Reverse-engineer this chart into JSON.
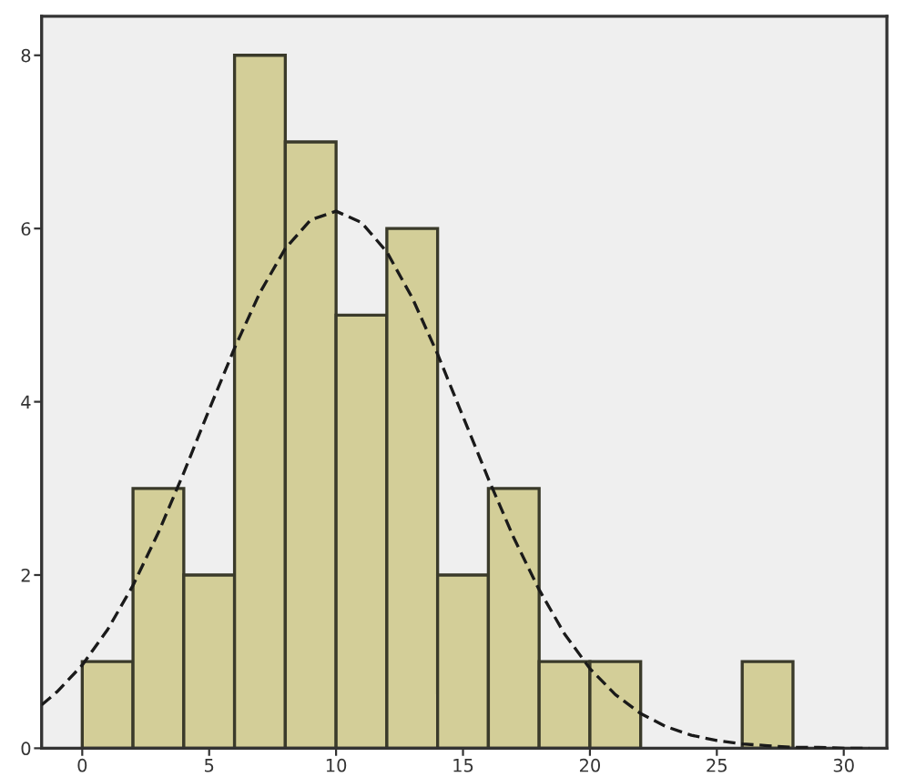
{
  "chart_data": {
    "type": "histogram",
    "xlim": [
      -1.6,
      31.7
    ],
    "ylim": [
      0,
      8.45
    ],
    "xticks": [
      0,
      5,
      10,
      15,
      20,
      25,
      30
    ],
    "yticks": [
      0,
      2,
      4,
      6,
      8
    ],
    "grid": false,
    "series": [
      {
        "color": "#d3ce98",
        "bins": [
          0,
          2,
          4,
          6,
          8,
          10,
          12,
          14,
          16,
          18,
          20,
          22,
          24,
          26,
          28
        ],
        "values": [
          1,
          3,
          2,
          8,
          7,
          5,
          6,
          2,
          3,
          1,
          1,
          0,
          0,
          1
        ]
      },
      {
        "type": "line",
        "color": "#1a1a1a",
        "line_style": "dashed",
        "x": [
          -1.6,
          -1,
          0,
          1,
          2,
          3,
          4,
          5,
          6,
          7,
          8,
          9,
          10,
          11,
          12,
          13,
          14,
          15,
          16,
          17,
          18,
          19,
          20,
          21,
          22,
          23,
          24,
          25,
          26,
          27,
          28,
          29,
          30,
          31
        ],
        "values": [
          0.5,
          0.65,
          0.96,
          1.37,
          1.88,
          2.49,
          3.18,
          3.91,
          4.62,
          5.26,
          5.77,
          6.1,
          6.2,
          6.07,
          5.73,
          5.2,
          4.55,
          3.83,
          3.11,
          2.43,
          1.83,
          1.32,
          0.92,
          0.62,
          0.4,
          0.25,
          0.15,
          0.09,
          0.05,
          0.03,
          0.01,
          0.01,
          0,
          0
        ]
      }
    ]
  }
}
